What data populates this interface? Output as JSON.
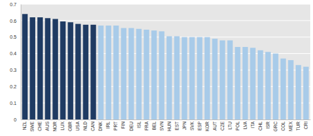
{
  "chart_data": {
    "type": "bar",
    "categories": [
      "NZL",
      "SWE",
      "CHE",
      "AUS",
      "NOR",
      "LUX",
      "GBR",
      "USA",
      "NLD",
      "CAN",
      "DNK",
      "IRL",
      "PRT",
      "FIN",
      "DEU",
      "ISL",
      "FRA",
      "BEL",
      "SVN",
      "HUN",
      "EST",
      "JPN",
      "SVK",
      "ESP",
      "KOR",
      "AUT",
      "CZE",
      "LTU",
      "POL",
      "LVA",
      "ITA",
      "CHL",
      "ISR",
      "GRC",
      "COL",
      "MEX",
      "TUR",
      "CRI"
    ],
    "values": [
      0.64,
      0.62,
      0.62,
      0.615,
      0.61,
      0.595,
      0.59,
      0.58,
      0.575,
      0.575,
      0.57,
      0.57,
      0.57,
      0.555,
      0.555,
      0.55,
      0.545,
      0.54,
      0.535,
      0.505,
      0.505,
      0.5,
      0.5,
      0.5,
      0.5,
      0.49,
      0.48,
      0.48,
      0.44,
      0.44,
      0.435,
      0.42,
      0.41,
      0.4,
      0.37,
      0.36,
      0.33,
      0.32
    ],
    "colors": [
      "#1f3b63",
      "#1f3b63",
      "#1f3b63",
      "#1f3b63",
      "#1f3b63",
      "#1f3b63",
      "#1f3b63",
      "#1f3b63",
      "#1f3b63",
      "#1f3b63",
      "#a8cbe9",
      "#a8cbe9",
      "#a8cbe9",
      "#a8cbe9",
      "#a8cbe9",
      "#a8cbe9",
      "#a8cbe9",
      "#a8cbe9",
      "#a8cbe9",
      "#a8cbe9",
      "#a8cbe9",
      "#a8cbe9",
      "#a8cbe9",
      "#a8cbe9",
      "#a8cbe9",
      "#a8cbe9",
      "#a8cbe9",
      "#a8cbe9",
      "#a8cbe9",
      "#a8cbe9",
      "#a8cbe9",
      "#a8cbe9",
      "#a8cbe9",
      "#a8cbe9",
      "#a8cbe9",
      "#a8cbe9",
      "#a8cbe9",
      "#a8cbe9"
    ],
    "ylim": [
      0,
      0.7
    ],
    "yticks": [
      0,
      0.1,
      0.2,
      0.3,
      0.4,
      0.5,
      0.6,
      0.7
    ],
    "grid": true
  }
}
